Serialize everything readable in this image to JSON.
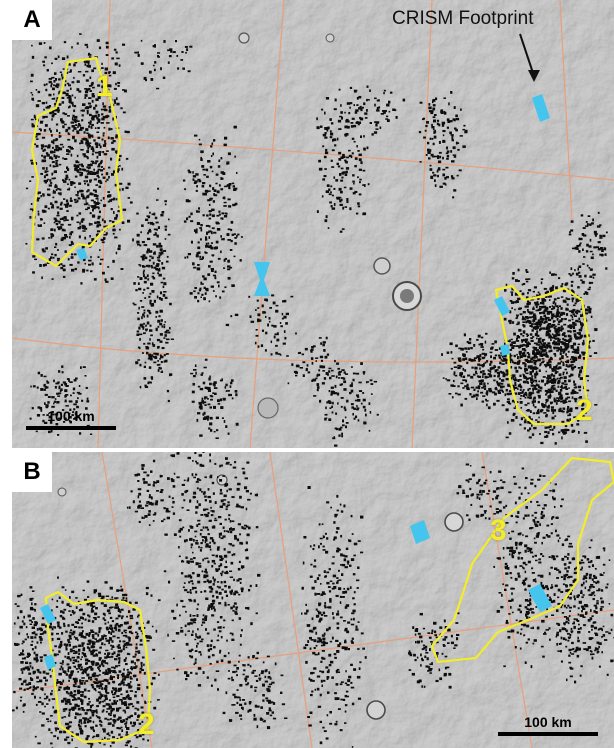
{
  "figure": {
    "panels": [
      {
        "id": "A",
        "label": "A",
        "regions": [
          "1",
          "2"
        ],
        "scale_bar": "100 km",
        "annotation": "CRISM Footprint"
      },
      {
        "id": "B",
        "label": "B",
        "regions": [
          "2",
          "3"
        ],
        "scale_bar": "100 km"
      }
    ],
    "colors": {
      "terrain": "#9c9c9c",
      "grid_lines": "#e8a07c",
      "region_outline": "#f2ec2a",
      "crism_footprint": "#45c4ee",
      "dots": "#0d0d0d"
    }
  }
}
